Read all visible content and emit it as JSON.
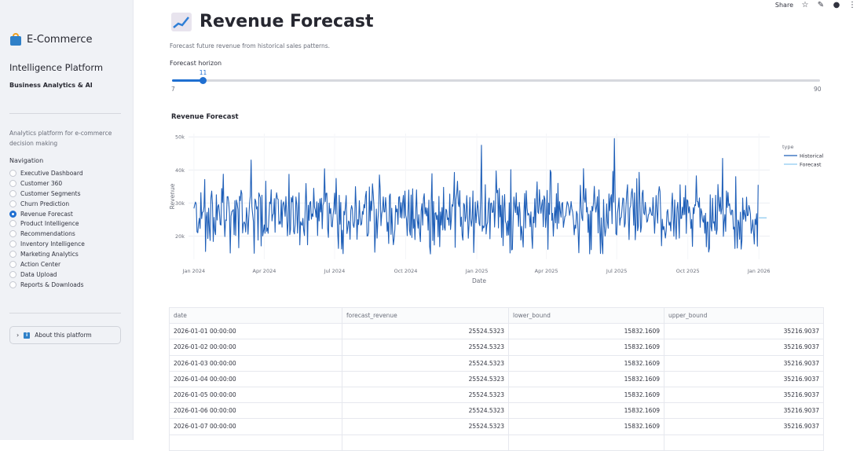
{
  "sidebar": {
    "brand": "E-Commerce",
    "subtitle1": "Intelligence Platform",
    "subtitle2": "Business Analytics & AI",
    "description": "Analytics platform for e-commerce decision making",
    "nav_label": "Navigation",
    "nav_items": [
      {
        "label": "Executive Dashboard",
        "selected": false
      },
      {
        "label": "Customer 360",
        "selected": false
      },
      {
        "label": "Customer Segments",
        "selected": false
      },
      {
        "label": "Churn Prediction",
        "selected": false
      },
      {
        "label": "Revenue Forecast",
        "selected": true
      },
      {
        "label": "Product Intelligence",
        "selected": false
      },
      {
        "label": "Recommendations",
        "selected": false
      },
      {
        "label": "Inventory Intelligence",
        "selected": false
      },
      {
        "label": "Marketing Analytics",
        "selected": false
      },
      {
        "label": "Action Center",
        "selected": false
      },
      {
        "label": "Data Upload",
        "selected": false
      },
      {
        "label": "Reports & Downloads",
        "selected": false
      }
    ],
    "about_label": "About this platform"
  },
  "topbar": {
    "share_label": "Share"
  },
  "main": {
    "title": "Revenue Forecast",
    "description": "Forecast future revenue from historical sales patterns.",
    "slider": {
      "label": "Forecast horizon",
      "value": 11,
      "min": 7,
      "max": 90
    },
    "chart_heading": "Revenue Forecast"
  },
  "chart_data": {
    "type": "line",
    "title": "Revenue Forecast",
    "xlabel": "Date",
    "ylabel": "Revenue",
    "x_ticks": [
      "Jan 2024",
      "Apr 2024",
      "Jul 2024",
      "Oct 2024",
      "Jan 2025",
      "Apr 2025",
      "Jul 2025",
      "Oct 2025",
      "Jan 2026"
    ],
    "y_ticks": [
      "20k",
      "30k",
      "40k",
      "50k"
    ],
    "ylim": [
      13000,
      51000
    ],
    "xlim": [
      "2023-12-25",
      "2026-01-15"
    ],
    "legend_title": "type",
    "legend_position": "top-right",
    "grid": true,
    "series": [
      {
        "name": "Historical",
        "color": "#1f5fb8",
        "x_start": "2024-01-01",
        "x_end": "2025-12-31",
        "mean": 26500,
        "range": [
          14500,
          49500
        ],
        "peaks": [
          {
            "x": "2024-03-15",
            "y": 43000
          },
          {
            "x": "2025-01-07",
            "y": 47500
          },
          {
            "x": "2025-06-28",
            "y": 49500
          },
          {
            "x": "2025-11-15",
            "y": 43500
          }
        ],
        "end_value": 35500
      },
      {
        "name": "Forecast",
        "color": "#8ecbf0",
        "x": [
          "2026-01-01",
          "2026-01-11"
        ],
        "y": [
          25524.5323,
          25524.5323
        ]
      }
    ]
  },
  "table": {
    "columns": [
      "date",
      "forecast_revenue",
      "lower_bound",
      "upper_bound"
    ],
    "rows": [
      [
        "2026-01-01 00:00:00",
        "25524.5323",
        "15832.1609",
        "35216.9037"
      ],
      [
        "2026-01-02 00:00:00",
        "25524.5323",
        "15832.1609",
        "35216.9037"
      ],
      [
        "2026-01-03 00:00:00",
        "25524.5323",
        "15832.1609",
        "35216.9037"
      ],
      [
        "2026-01-04 00:00:00",
        "25524.5323",
        "15832.1609",
        "35216.9037"
      ],
      [
        "2026-01-05 00:00:00",
        "25524.5323",
        "15832.1609",
        "35216.9037"
      ],
      [
        "2026-01-06 00:00:00",
        "25524.5323",
        "15832.1609",
        "35216.9037"
      ],
      [
        "2026-01-07 00:00:00",
        "25524.5323",
        "15832.1609",
        "35216.9037"
      ],
      [
        "",
        "",
        "",
        ""
      ]
    ]
  }
}
